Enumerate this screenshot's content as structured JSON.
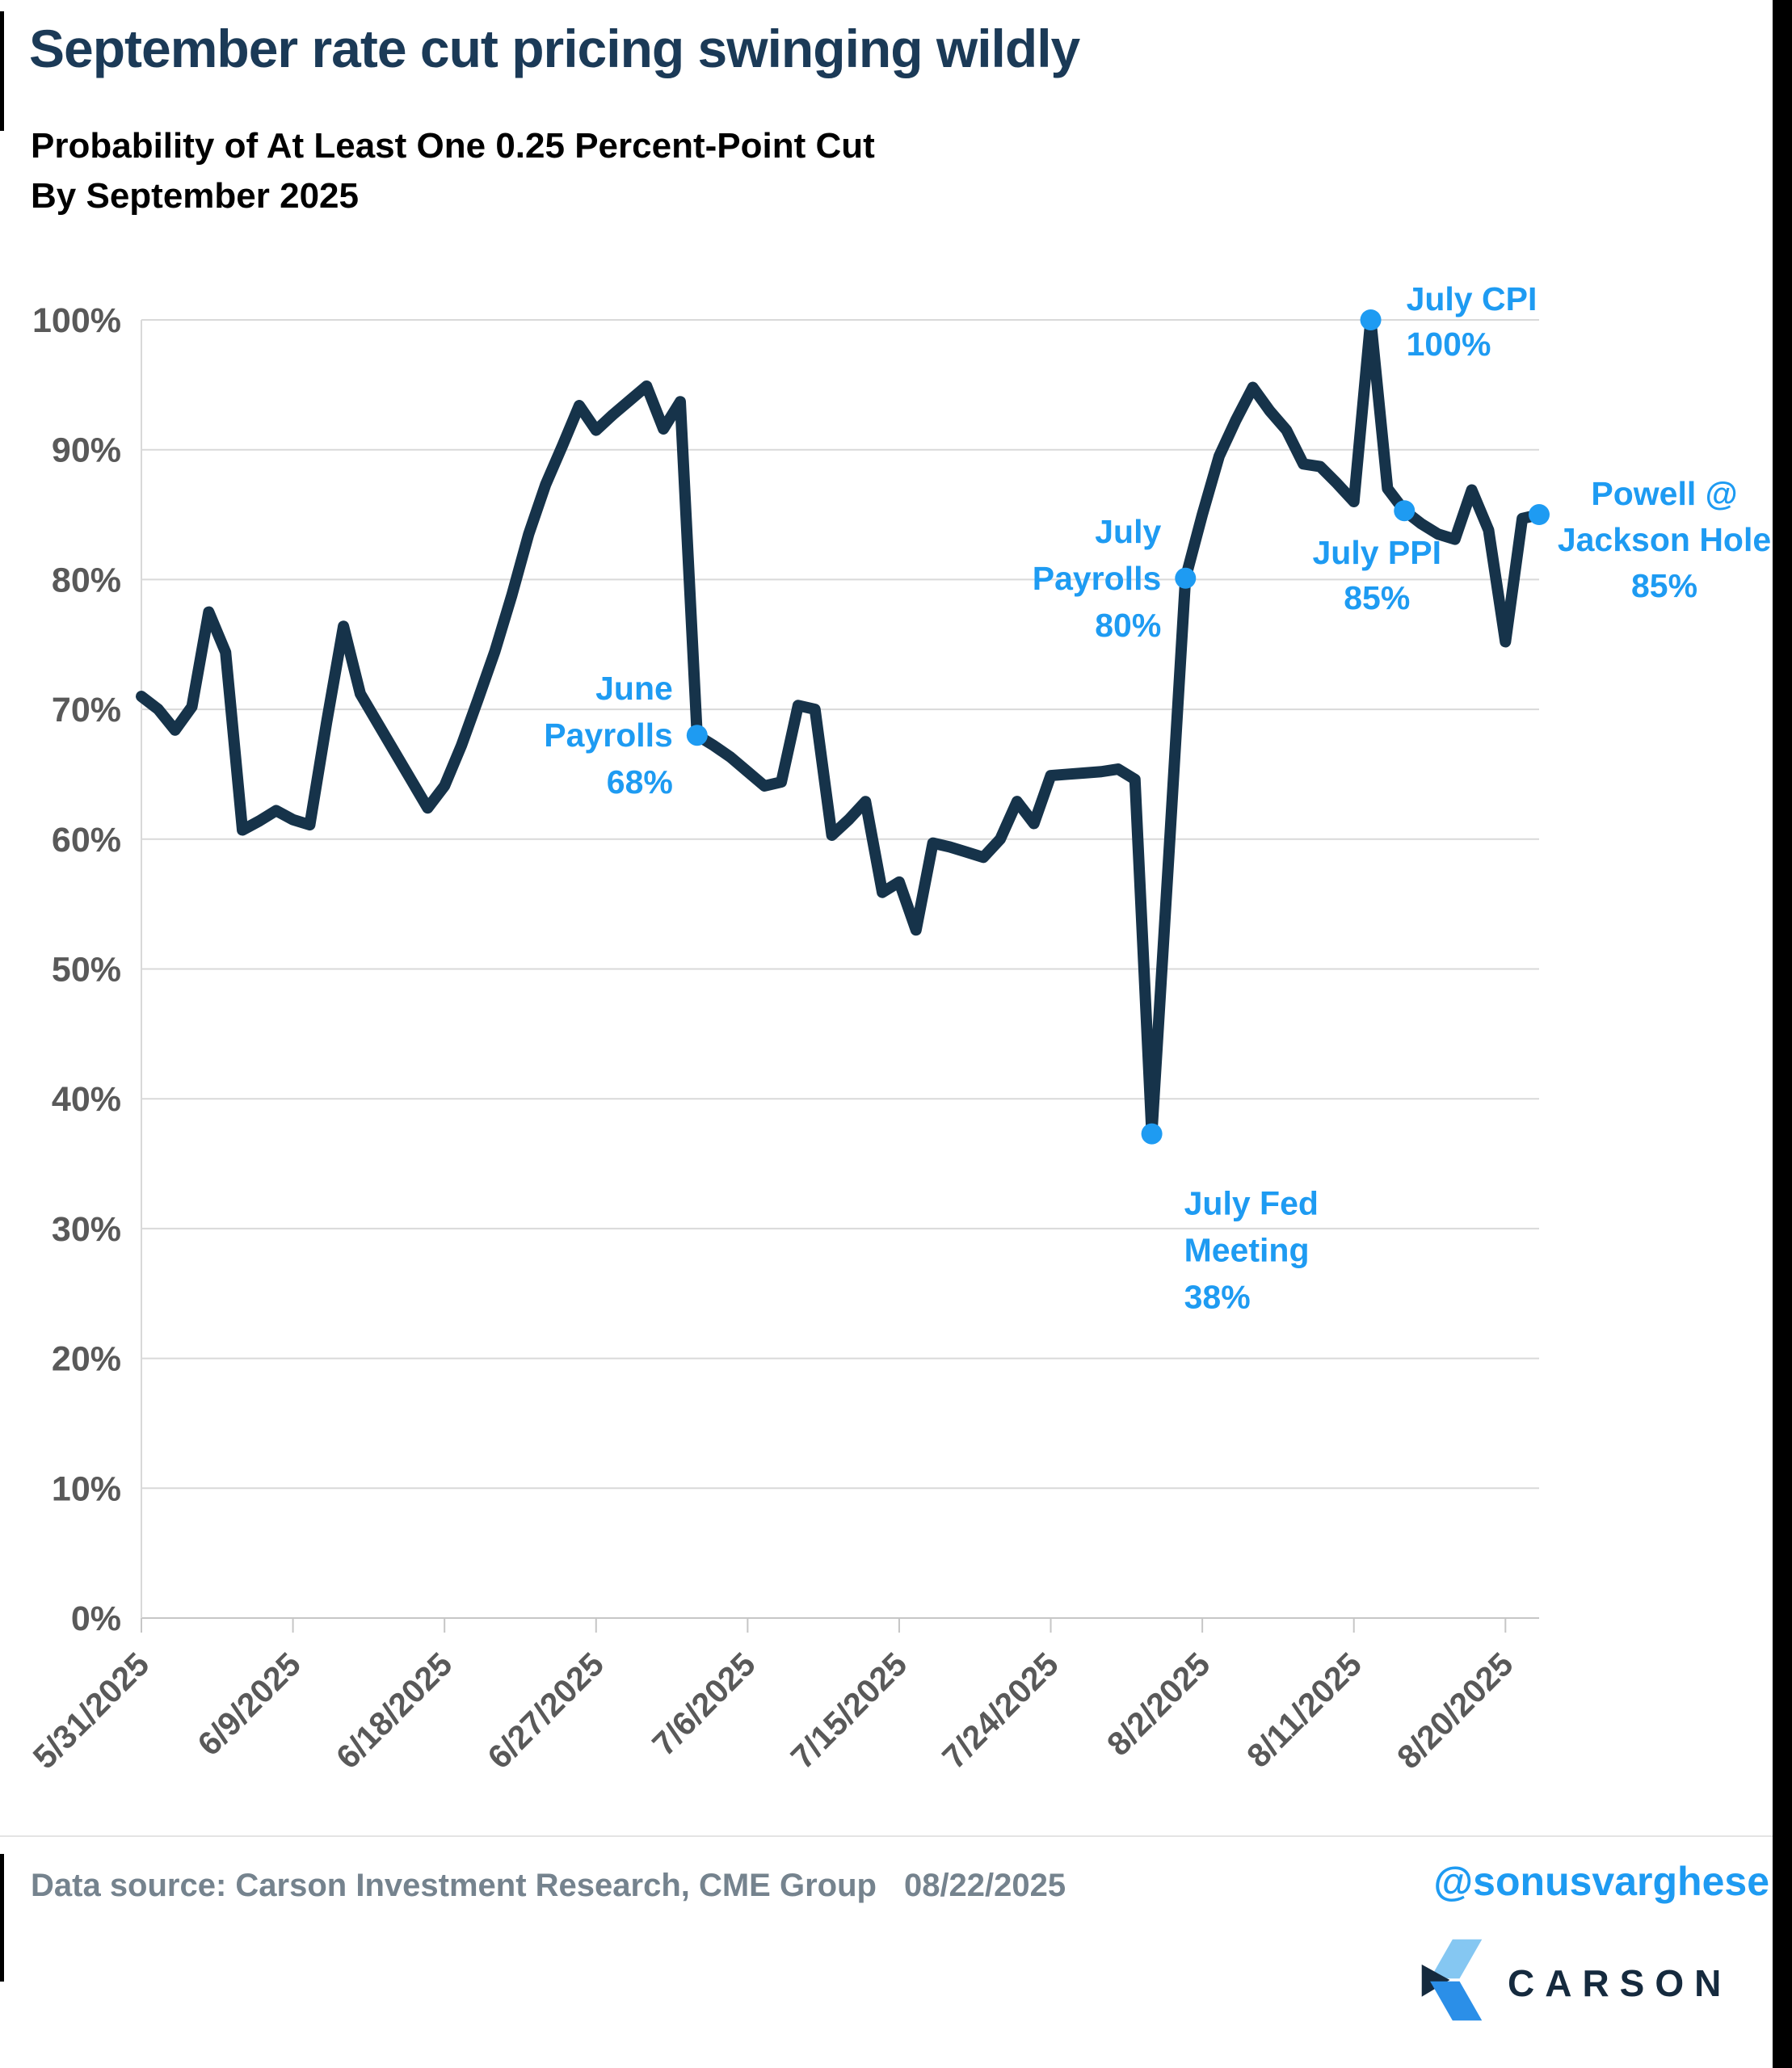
{
  "title": "September rate cut pricing swinging wildly",
  "subtitle": {
    "line1": "Probability of At Least One 0.25 Percent-Point Cut",
    "line2": "By September 2025"
  },
  "footer": {
    "source": "Data source: Carson Investment Research, CME Group",
    "date": "08/22/2025",
    "handle": "@sonusvarghese",
    "brand": "CARSON"
  },
  "colors": {
    "line_navy": "#16334A",
    "accent_blue": "#1E9BF2",
    "title_navy": "#1B3A57",
    "axis_label_gray": "#595959",
    "footer_gray": "#75838E",
    "gridline_gray": "#D9D9D9",
    "brand_navy": "#152A3E",
    "logo_light_blue": "#85C7F2",
    "logo_mid_blue": "#2B8FE8",
    "border_black": "#000000"
  },
  "chart_data": {
    "type": "line",
    "title": "Probability of At Least One 0.25 Percent-Point Cut By September 2025",
    "xlabel": "",
    "ylabel": "",
    "ylim": [
      0,
      100
    ],
    "grid": "horizontal",
    "legend": "none",
    "y_tick_labels": [
      "0%",
      "10%",
      "20%",
      "30%",
      "40%",
      "50%",
      "60%",
      "70%",
      "80%",
      "90%",
      "100%"
    ],
    "x_tick_every": 9,
    "x_tick_labels": [
      "5/31/2025",
      "6/9/2025",
      "6/18/2025",
      "6/27/2025",
      "7/6/2025",
      "7/15/2025",
      "7/24/2025",
      "8/2/2025",
      "8/11/2025",
      "8/20/2025"
    ],
    "x": [
      "5/31/2025",
      "6/1/2025",
      "6/2/2025",
      "6/3/2025",
      "6/4/2025",
      "6/5/2025",
      "6/6/2025",
      "6/7/2025",
      "6/8/2025",
      "6/9/2025",
      "6/10/2025",
      "6/11/2025",
      "6/12/2025",
      "6/13/2025",
      "6/14/2025",
      "6/15/2025",
      "6/16/2025",
      "6/17/2025",
      "6/18/2025",
      "6/19/2025",
      "6/20/2025",
      "6/21/2025",
      "6/22/2025",
      "6/23/2025",
      "6/24/2025",
      "6/25/2025",
      "6/26/2025",
      "6/27/2025",
      "6/28/2025",
      "6/29/2025",
      "6/30/2025",
      "7/1/2025",
      "7/2/2025",
      "7/3/2025",
      "7/4/2025",
      "7/5/2025",
      "7/6/2025",
      "7/7/2025",
      "7/8/2025",
      "7/9/2025",
      "7/10/2025",
      "7/11/2025",
      "7/12/2025",
      "7/13/2025",
      "7/14/2025",
      "7/15/2025",
      "7/16/2025",
      "7/17/2025",
      "7/18/2025",
      "7/19/2025",
      "7/20/2025",
      "7/21/2025",
      "7/22/2025",
      "7/23/2025",
      "7/24/2025",
      "7/25/2025",
      "7/26/2025",
      "7/27/2025",
      "7/28/2025",
      "7/29/2025",
      "7/30/2025",
      "7/31/2025",
      "8/1/2025",
      "8/2/2025",
      "8/3/2025",
      "8/4/2025",
      "8/5/2025",
      "8/6/2025",
      "8/7/2025",
      "8/8/2025",
      "8/9/2025",
      "8/10/2025",
      "8/11/2025",
      "8/12/2025",
      "8/13/2025",
      "8/14/2025",
      "8/15/2025",
      "8/16/2025",
      "8/17/2025",
      "8/18/2025",
      "8/19/2025",
      "8/20/2025",
      "8/21/2025",
      "8/22/2025"
    ],
    "values": [
      71.0,
      70.0,
      68.4,
      70.2,
      77.5,
      74.4,
      60.7,
      61.4,
      62.2,
      61.5,
      61.1,
      69.0,
      76.4,
      71.2,
      69.0,
      66.8,
      64.6,
      62.4,
      64.1,
      67.2,
      70.8,
      74.5,
      78.8,
      83.5,
      87.3,
      90.3,
      93.4,
      91.5,
      92.7,
      93.8,
      94.9,
      91.6,
      93.7,
      68.0,
      67.2,
      66.3,
      65.2,
      64.1,
      64.4,
      70.3,
      70.0,
      60.3,
      61.5,
      62.9,
      55.9,
      56.7,
      53.0,
      59.7,
      59.4,
      59.0,
      58.6,
      60.0,
      62.9,
      61.2,
      64.9,
      65.0,
      65.1,
      65.2,
      65.4,
      64.6,
      37.3,
      58.5,
      80.1,
      85.0,
      89.5,
      92.3,
      94.8,
      93.0,
      91.5,
      88.9,
      88.7,
      87.4,
      86.0,
      100.0,
      87.0,
      85.3,
      84.3,
      83.5,
      83.1,
      86.9,
      83.8,
      75.2,
      84.7,
      85.0
    ],
    "annotations": [
      {
        "name": "june-payrolls",
        "index": 33,
        "value": 68.0,
        "lines": [
          "June",
          "Payrolls",
          "68%"
        ],
        "anchor": "end",
        "dx": -30,
        "first_dy": -44,
        "line_height": 58
      },
      {
        "name": "july-fed-meeting",
        "index": 60,
        "value": 37.3,
        "lines": [
          "July Fed",
          "Meeting",
          "38%"
        ],
        "anchor": "start",
        "dx": 40,
        "first_dy": 100,
        "line_height": 58
      },
      {
        "name": "july-payrolls",
        "index": 62,
        "value": 80.1,
        "lines": [
          "July",
          "Payrolls",
          "80%"
        ],
        "anchor": "end",
        "dx": -30,
        "first_dy": -44,
        "line_height": 58
      },
      {
        "name": "july-cpi",
        "index": 73,
        "value": 100.0,
        "lines": [
          "July CPI",
          "100%"
        ],
        "anchor": "start",
        "dx": 44,
        "first_dy": -12,
        "line_height": 56
      },
      {
        "name": "july-ppi",
        "index": 75,
        "value": 85.3,
        "lines": [
          "July PPI",
          "85%"
        ],
        "anchor": "middle",
        "dx": -34,
        "first_dy": 66,
        "line_height": 56
      },
      {
        "name": "powell-jackson-hole",
        "index": 83,
        "value": 85.0,
        "lines": [
          "Powell @",
          "Jackson Hole",
          "85%"
        ],
        "anchor": "middle",
        "dx": 155,
        "first_dy": -12,
        "line_height": 57
      }
    ]
  }
}
